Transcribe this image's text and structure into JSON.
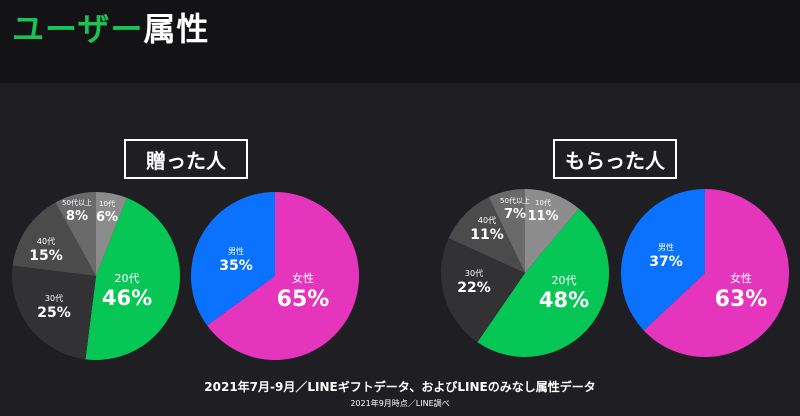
{
  "header": {
    "title_accent": "ユーザー",
    "title_rest": "属性"
  },
  "panels": {
    "left_label": "贈った人",
    "right_label": "もらった人"
  },
  "footer": {
    "main": "2021年7月-9月／LINEギフトデータ、およびLINEのみなし属性データ",
    "sub": "2021年9月時点／LINE調べ"
  },
  "colors": {
    "green": "#06c755",
    "pink": "#e535bd",
    "blue": "#0a72ff",
    "gray10": "#8c8c8c",
    "gray50": "#6a6a6a",
    "gray40": "#4b4b4b",
    "gray30": "#323234"
  },
  "chart_data": [
    {
      "type": "pie",
      "title": "贈った人",
      "slices": [
        {
          "label": "10代",
          "value": 6,
          "display": "6%"
        },
        {
          "label": "20代",
          "value": 46,
          "display": "46%"
        },
        {
          "label": "30代",
          "value": 25,
          "display": "25%"
        },
        {
          "label": "40代",
          "value": 15,
          "display": "15%"
        },
        {
          "label": "50代以上",
          "value": 8,
          "display": "8%"
        }
      ]
    },
    {
      "type": "pie",
      "title": "贈った人",
      "slices": [
        {
          "label": "女性",
          "value": 65,
          "display": "65%"
        },
        {
          "label": "男性",
          "value": 35,
          "display": "35%"
        }
      ]
    },
    {
      "type": "pie",
      "title": "もらった人",
      "slices": [
        {
          "label": "10代",
          "value": 11,
          "display": "11%"
        },
        {
          "label": "20代",
          "value": 48,
          "display": "48%"
        },
        {
          "label": "30代",
          "value": 22,
          "display": "22%"
        },
        {
          "label": "40代",
          "value": 11,
          "display": "11%"
        },
        {
          "label": "50代以上",
          "value": 7,
          "display": "7%"
        }
      ]
    },
    {
      "type": "pie",
      "title": "もらった人",
      "slices": [
        {
          "label": "女性",
          "value": 63,
          "display": "63%"
        },
        {
          "label": "男性",
          "value": 37,
          "display": "37%"
        }
      ]
    }
  ]
}
